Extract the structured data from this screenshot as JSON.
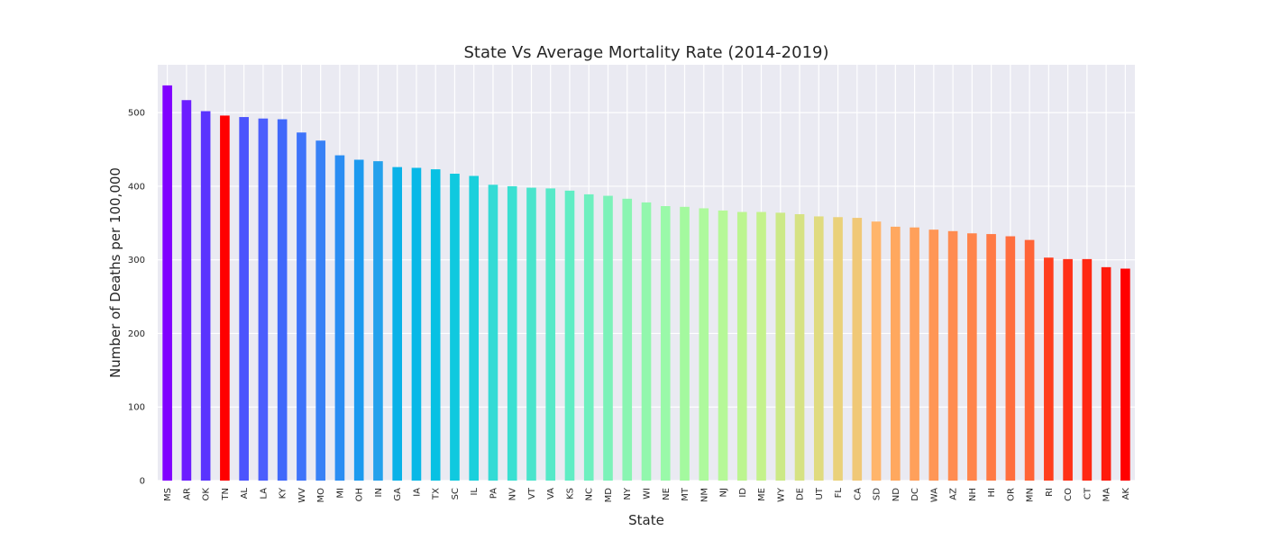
{
  "chart_data": {
    "type": "bar",
    "title": "State Vs Average Mortality Rate (2014-2019)",
    "xlabel": "State",
    "ylabel": "Number of Deaths per 100,000",
    "ylim": [
      0,
      565
    ],
    "yticks": [
      0,
      100,
      200,
      300,
      400,
      500
    ],
    "grid": true,
    "background_color": "#eaeaf2",
    "categories": [
      "MS",
      "AR",
      "OK",
      "TN",
      "AL",
      "LA",
      "KY",
      "WV",
      "MO",
      "MI",
      "OH",
      "IN",
      "GA",
      "IA",
      "TX",
      "SC",
      "IL",
      "PA",
      "NV",
      "VT",
      "VA",
      "KS",
      "NC",
      "MD",
      "NY",
      "WI",
      "NE",
      "MT",
      "NM",
      "NJ",
      "ID",
      "ME",
      "WY",
      "DE",
      "UT",
      "FL",
      "CA",
      "SD",
      "ND",
      "DC",
      "WA",
      "AZ",
      "NH",
      "HI",
      "OR",
      "MN",
      "RI",
      "CO",
      "CT",
      "MA",
      "AK"
    ],
    "values": [
      537,
      517,
      502,
      496,
      494,
      492,
      491,
      473,
      462,
      442,
      436,
      434,
      426,
      425,
      423,
      417,
      414,
      402,
      400,
      398,
      397,
      394,
      389,
      387,
      383,
      378,
      373,
      372,
      370,
      367,
      365,
      365,
      364,
      362,
      359,
      358,
      357,
      352,
      345,
      344,
      341,
      339,
      336,
      335,
      332,
      327,
      303,
      301,
      301,
      290,
      288
    ],
    "colors": [
      "#8000ff",
      "#6c1dff",
      "#5a34fe",
      "#ff0000",
      "#4b54fd",
      "#4b5efd",
      "#4068fb",
      "#3e73fa",
      "#3881f6",
      "#2a8df3",
      "#1c9aef",
      "#24a1ec",
      "#0ab2e8",
      "#08b8e7",
      "#08c1e3",
      "#10c9df",
      "#1ad0dc",
      "#34dbd5",
      "#3ae0d2",
      "#4ae4cc",
      "#56e9c8",
      "#60edc4",
      "#6ef0bf",
      "#7cf2b9",
      "#8af5b2",
      "#92f7ad",
      "#9af9a9",
      "#a4f99f",
      "#aef99d",
      "#b6f898",
      "#bcf590",
      "#c4f28c",
      "#cce987",
      "#d6e283",
      "#e0db7f",
      "#ead17a",
      "#f0c877",
      "#ffb56b",
      "#ffa85f",
      "#ffa05b",
      "#ff9656",
      "#ff8c51",
      "#ff844b",
      "#ff7a45",
      "#ff6e3e",
      "#ff6437",
      "#ff3e1e",
      "#ff3018",
      "#ff2813",
      "#ff1a0c",
      "#ff0000"
    ]
  }
}
